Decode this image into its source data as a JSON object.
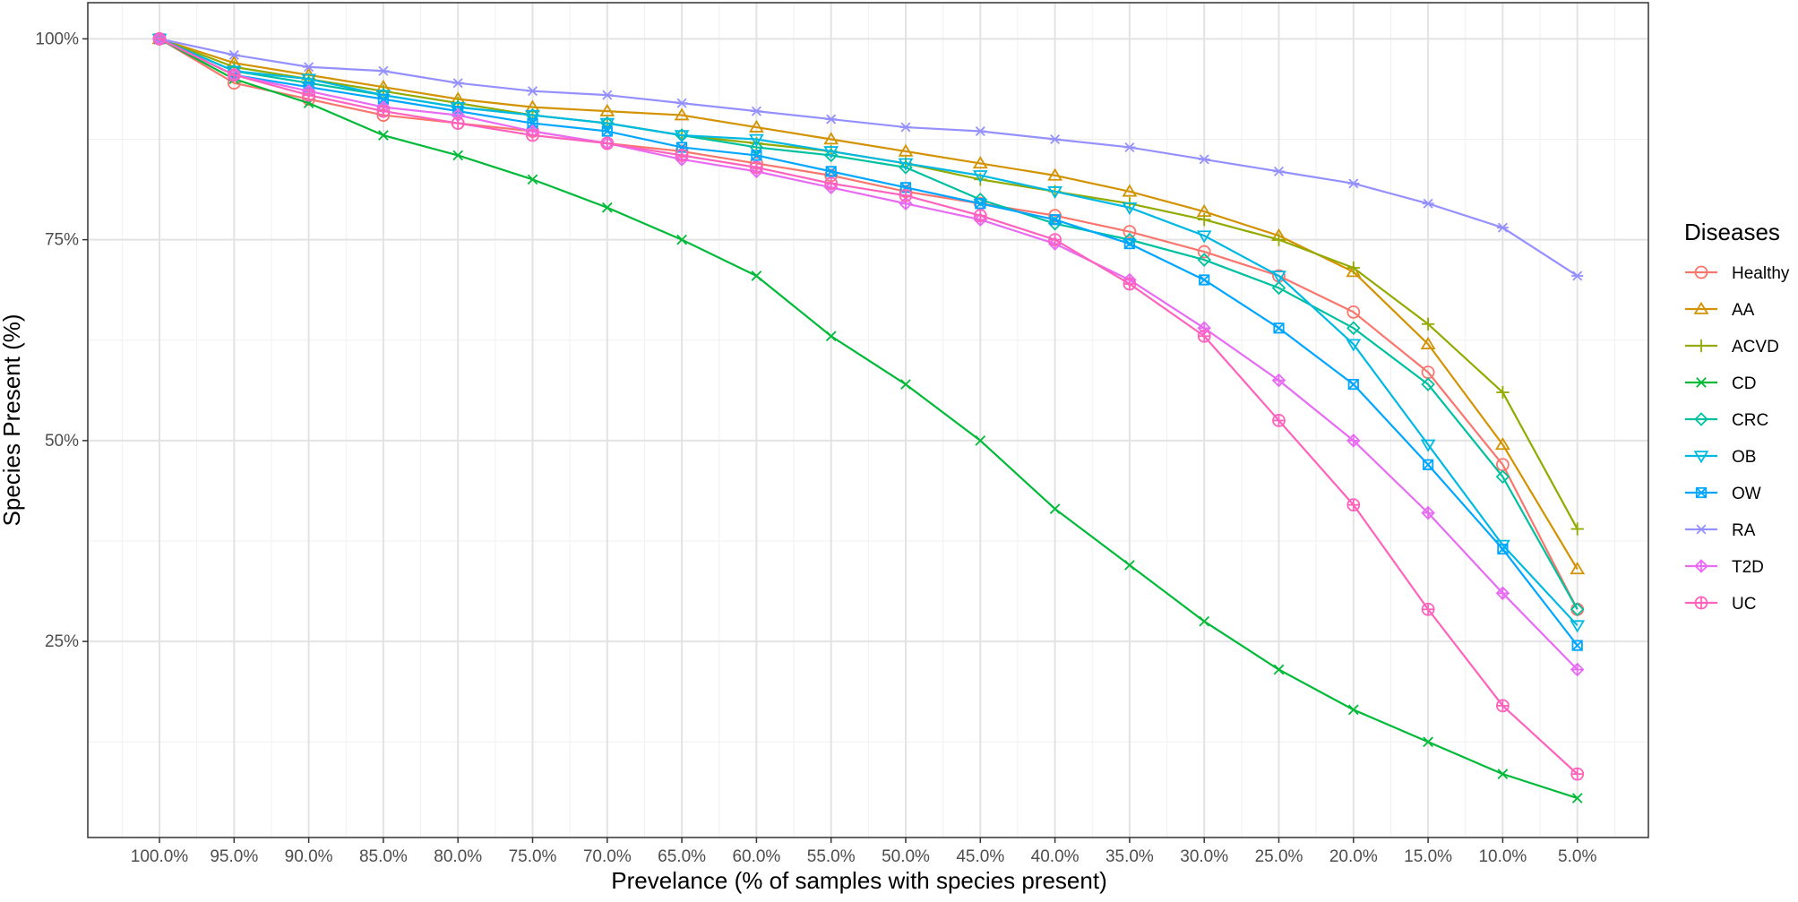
{
  "chart_data": {
    "type": "line",
    "xlabel": "Prevelance (% of samples with species present)",
    "ylabel": "Species Present (%)",
    "x_categories": [
      "100.0%",
      "95.0%",
      "90.0%",
      "85.0%",
      "80.0%",
      "75.0%",
      "70.0%",
      "65.0%",
      "60.0%",
      "55.0%",
      "50.0%",
      "45.0%",
      "40.0%",
      "35.0%",
      "30.0%",
      "25.0%",
      "20.0%",
      "15.0%",
      "10.0%",
      "5.0%"
    ],
    "y_ticks": [
      25,
      50,
      75,
      100
    ],
    "y_tick_labels": [
      "25%",
      "50%",
      "75%",
      "100%"
    ],
    "ylim": [
      0.6,
      104.5
    ],
    "grid": true,
    "legend_title": "Diseases",
    "legend_position": "right",
    "series": [
      {
        "name": "Healthy",
        "color": "#F8766D",
        "marker": "circle",
        "values": [
          100,
          94.5,
          92.5,
          90.5,
          89.5,
          88.5,
          87,
          86,
          84.5,
          83,
          81,
          79.5,
          78,
          76,
          73.5,
          70.5,
          66,
          58.5,
          47,
          29
        ]
      },
      {
        "name": "AA",
        "color": "#D39200",
        "marker": "triangle-up",
        "values": [
          100,
          97,
          95.5,
          94,
          92.5,
          91.5,
          91,
          90.5,
          89,
          87.5,
          86,
          84.5,
          83,
          81,
          78.5,
          75.5,
          71,
          62,
          49.5,
          34
        ]
      },
      {
        "name": "ACVD",
        "color": "#93AA00",
        "marker": "plus",
        "values": [
          100,
          96.5,
          95,
          93.5,
          92,
          90.5,
          89.5,
          88,
          87,
          86,
          84.5,
          82.5,
          81,
          79.5,
          77.5,
          75,
          71.5,
          64.5,
          56,
          39
        ]
      },
      {
        "name": "CD",
        "color": "#00BA38",
        "marker": "x",
        "values": [
          100,
          95,
          92,
          88,
          85.5,
          82.5,
          79,
          75,
          70.5,
          63,
          57,
          50,
          41.5,
          34.5,
          27.5,
          21.5,
          16.5,
          12.5,
          8.5,
          5.5
        ]
      },
      {
        "name": "CRC",
        "color": "#00C19F",
        "marker": "diamond",
        "values": [
          100,
          96,
          94.5,
          93,
          91.5,
          90.5,
          89.5,
          88,
          86.5,
          85.5,
          84,
          80,
          77,
          75,
          72.5,
          69,
          64,
          57,
          45.5,
          29
        ]
      },
      {
        "name": "OB",
        "color": "#00B9E3",
        "marker": "triangle-down",
        "values": [
          100,
          96,
          95,
          93,
          91.5,
          90.5,
          89.5,
          88,
          87.5,
          86,
          84.5,
          83,
          81,
          79,
          75.5,
          70.5,
          62,
          49.5,
          37,
          27
        ]
      },
      {
        "name": "OW",
        "color": "#00A6FF",
        "marker": "square-cross",
        "values": [
          100,
          95.5,
          94,
          92.5,
          91,
          89.5,
          88.5,
          86.5,
          85.5,
          83.5,
          81.5,
          79.5,
          77.5,
          74.5,
          70,
          64,
          57,
          47,
          36.5,
          24.5
        ]
      },
      {
        "name": "RA",
        "color": "#9590FF",
        "marker": "asterisk",
        "values": [
          100,
          98,
          96.5,
          96,
          94.5,
          93.5,
          93,
          92,
          91,
          90,
          89,
          88.5,
          87.5,
          86.5,
          85,
          83.5,
          82,
          79.5,
          76.5,
          70.5
        ]
      },
      {
        "name": "T2D",
        "color": "#E76BF3",
        "marker": "diamond-plus",
        "values": [
          100,
          95.5,
          93.5,
          91.5,
          90.5,
          88.5,
          87,
          85,
          83.5,
          81.5,
          79.5,
          77.5,
          74.5,
          70,
          64,
          57.5,
          50,
          41,
          31,
          21.5
        ]
      },
      {
        "name": "UC",
        "color": "#FF62BC",
        "marker": "circle-plus",
        "values": [
          100,
          95.5,
          93,
          91,
          89.5,
          88,
          87,
          85.5,
          84,
          82,
          80.5,
          78,
          75,
          69.5,
          63,
          52.5,
          42,
          29,
          17,
          8.5
        ]
      }
    ]
  }
}
